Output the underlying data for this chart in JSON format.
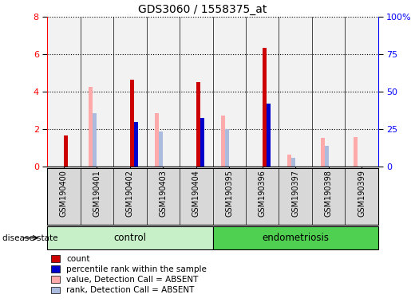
{
  "title": "GDS3060 / 1558375_at",
  "samples": [
    "GSM190400",
    "GSM190401",
    "GSM190402",
    "GSM190403",
    "GSM190404",
    "GSM190395",
    "GSM190396",
    "GSM190397",
    "GSM190398",
    "GSM190399"
  ],
  "groups": [
    {
      "name": "control",
      "indices": [
        0,
        1,
        2,
        3,
        4
      ],
      "color": "#c8f0c8"
    },
    {
      "name": "endometriosis",
      "indices": [
        5,
        6,
        7,
        8,
        9
      ],
      "color": "#50d050"
    }
  ],
  "count": [
    1.65,
    0.0,
    4.65,
    0.0,
    4.5,
    0.0,
    6.35,
    0.0,
    0.0,
    0.0
  ],
  "percentile_rank": [
    0.0,
    0.0,
    2.4,
    0.0,
    2.6,
    0.0,
    3.35,
    0.0,
    0.0,
    0.0
  ],
  "value_absent": [
    0.0,
    4.25,
    0.0,
    2.85,
    0.0,
    2.75,
    0.0,
    0.65,
    1.55,
    1.6
  ],
  "rank_absent": [
    0.0,
    2.85,
    0.0,
    1.9,
    0.0,
    2.0,
    0.0,
    0.5,
    1.1,
    0.0
  ],
  "ylim_left": [
    0,
    8
  ],
  "ylim_right": [
    0,
    100
  ],
  "yticks_left": [
    0,
    2,
    4,
    6,
    8
  ],
  "yticks_right": [
    0,
    25,
    50,
    75,
    100
  ],
  "yticklabels_right": [
    "0",
    "25",
    "50",
    "75",
    "100%"
  ],
  "bar_width": 0.12,
  "bar_color_count": "#cc0000",
  "bar_color_percentile": "#0000cc",
  "bar_color_value_absent": "#ffaaaa",
  "bar_color_rank_absent": "#aabbdd",
  "bg_axes": "#f2f2f2",
  "legend_labels": [
    "count",
    "percentile rank within the sample",
    "value, Detection Call = ABSENT",
    "rank, Detection Call = ABSENT"
  ]
}
